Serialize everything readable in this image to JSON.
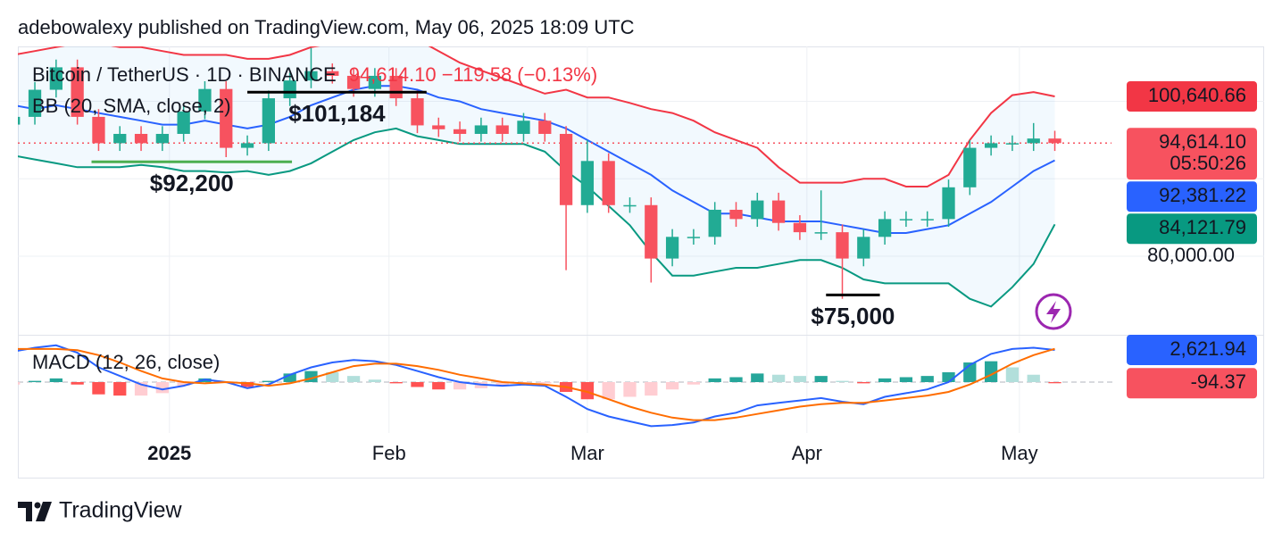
{
  "header": "adebowalexy published on TradingView.com, May 06, 2025 18:09 UTC",
  "footer": {
    "brand": "TradingView"
  },
  "chart_data": {
    "type": "candlestick",
    "symbol": "Bitcoin / TetherUS · 1D · BINANCE",
    "last_quote": "94,614.10 −119.58 (−0.13%)",
    "x": [
      0,
      3,
      6,
      9,
      12,
      15,
      18,
      21,
      24,
      27,
      30,
      33,
      36,
      39,
      42,
      45,
      48,
      51,
      54,
      57,
      60,
      63,
      66,
      69,
      72,
      75,
      78,
      81,
      84,
      87,
      90,
      93,
      96,
      99,
      102,
      105,
      108,
      111,
      114,
      117,
      120,
      123,
      126,
      129,
      132,
      135,
      138,
      141,
      144,
      147
    ],
    "xlim": [
      0.6,
      155
    ],
    "xticks": [
      {
        "value": 22,
        "label": "2025"
      },
      {
        "value": 53,
        "label": "Feb"
      },
      {
        "value": 81,
        "label": "Mar"
      },
      {
        "value": 112,
        "label": "Apr"
      },
      {
        "value": 142,
        "label": "May"
      }
    ],
    "ylim": [
      69853,
      107098
    ],
    "yticks": [
      {
        "value": 80000,
        "label": "80,000.00"
      }
    ],
    "ygrid": [
      80000,
      90000,
      100000
    ],
    "up_color": "#22ab94",
    "down_color": "#f7525f",
    "open": [
      97000,
      98000,
      101500,
      104400,
      98000,
      94600,
      95800,
      94600,
      95800,
      98700,
      101600,
      94000,
      94600,
      100400,
      102700,
      103900,
      103300,
      101600,
      103300,
      100400,
      96900,
      96400,
      95800,
      96900,
      95800,
      97500,
      95800,
      86600,
      92300,
      86600,
      86600,
      79700,
      82500,
      82500,
      86000,
      84800,
      87200,
      84300,
      83100,
      83100,
      79700,
      82500,
      84800,
      84800,
      84800,
      88900,
      94000,
      94600,
      94600,
      95200
    ],
    "high": [
      99000,
      102500,
      105400,
      105400,
      99000,
      96800,
      96800,
      96800,
      99700,
      102600,
      102600,
      95600,
      101400,
      103700,
      106900,
      104900,
      104300,
      104300,
      104300,
      101400,
      97900,
      97400,
      97900,
      97900,
      98500,
      98500,
      96800,
      95000,
      93300,
      87600,
      87600,
      83500,
      83500,
      87000,
      87000,
      88200,
      88200,
      85300,
      88500,
      84100,
      83500,
      85800,
      85800,
      85800,
      89900,
      95000,
      95600,
      95600,
      97200,
      96200
    ],
    "low": [
      96000,
      97000,
      100500,
      97000,
      93600,
      93600,
      93600,
      93600,
      94800,
      97700,
      92800,
      93000,
      93600,
      99400,
      101700,
      102300,
      100600,
      100600,
      99400,
      95900,
      95400,
      94800,
      94800,
      94800,
      94800,
      94800,
      78200,
      85600,
      85600,
      85600,
      76600,
      78700,
      81500,
      81500,
      83800,
      83800,
      83300,
      82100,
      82100,
      74500,
      78700,
      81500,
      83800,
      83800,
      83800,
      87900,
      93000,
      93600,
      93600,
      93600
    ],
    "close": [
      98000,
      101500,
      104400,
      98000,
      94600,
      95800,
      94600,
      95800,
      98700,
      101600,
      94000,
      94600,
      100400,
      102700,
      103900,
      103300,
      101600,
      103300,
      100400,
      96900,
      96400,
      95800,
      96900,
      95800,
      97500,
      95800,
      86600,
      92300,
      86600,
      86600,
      79700,
      82500,
      82500,
      86000,
      84800,
      87200,
      84300,
      83100,
      83100,
      79700,
      82500,
      84800,
      84800,
      84800,
      88900,
      94000,
      94600,
      94600,
      95200,
      94614.1
    ],
    "last_price": {
      "value": 94614.1,
      "label": "94,614.10",
      "countdown": "05:50:26",
      "color": "#f7525f"
    },
    "bollinger": {
      "name": "BB (20, SMA, close, 2)",
      "fill": "#2196f3",
      "upper": {
        "color": "#f23645",
        "last_label": "100,640.66",
        "values": [
          106000,
          106500,
          107000,
          107500,
          107500,
          107000,
          107000,
          106500,
          106000,
          106000,
          106000,
          105500,
          105500,
          106000,
          107000,
          107500,
          107500,
          108000,
          108000,
          108000,
          106500,
          105000,
          104000,
          103000,
          102000,
          101000,
          101500,
          100500,
          100500,
          99800,
          99000,
          98500,
          97500,
          96000,
          95000,
          94000,
          91500,
          89500,
          89500,
          89500,
          90000,
          90000,
          89000,
          89000,
          90500,
          95000,
          98500,
          100800,
          101200,
          100640.66
        ]
      },
      "middle": {
        "color": "#2962ff",
        "last_label": "92,381.22",
        "values": [
          99500,
          99000,
          99500,
          99000,
          98500,
          98000,
          97500,
          97000,
          97000,
          97500,
          97000,
          96500,
          97000,
          98000,
          99500,
          100500,
          101500,
          102000,
          102000,
          101500,
          100500,
          100000,
          99000,
          98500,
          98000,
          97500,
          96500,
          95000,
          93500,
          92000,
          90500,
          88500,
          87000,
          85500,
          85500,
          85000,
          84500,
          84500,
          84500,
          84000,
          83500,
          83000,
          83000,
          83500,
          84000,
          85500,
          87000,
          89000,
          91000,
          92381.22
        ]
      },
      "lower": {
        "color": "#089981",
        "last_label": "84,121.79",
        "values": [
          93000,
          92500,
          92000,
          91500,
          91500,
          91500,
          91800,
          91500,
          91000,
          91000,
          90800,
          91000,
          90500,
          91000,
          92000,
          93500,
          95000,
          96000,
          96500,
          95500,
          95000,
          94500,
          94500,
          94500,
          94500,
          93500,
          91000,
          89000,
          86500,
          84000,
          80500,
          77500,
          77500,
          78000,
          78500,
          78500,
          79000,
          79500,
          79500,
          78500,
          77000,
          76500,
          76500,
          76500,
          76500,
          74500,
          73500,
          76000,
          79000,
          84121.79
        ]
      }
    },
    "macd": {
      "name": "MACD (12, 26, close)",
      "ylim": [
        -4150,
        3858
      ],
      "baseline": 0,
      "line": {
        "color": "#2962ff",
        "last_label": "2,621.94",
        "values": [
          2500,
          2800,
          3000,
          2400,
          1200,
          500,
          -200,
          -600,
          -300,
          200,
          0,
          -500,
          -200,
          600,
          1200,
          1600,
          1800,
          1700,
          1400,
          900,
          400,
          0,
          -200,
          -300,
          -200,
          -300,
          -1200,
          -2200,
          -2800,
          -3200,
          -3600,
          -3500,
          -3300,
          -2800,
          -2500,
          -1900,
          -1700,
          -1500,
          -1300,
          -1600,
          -1800,
          -1200,
          -900,
          -600,
          0,
          1400,
          2300,
          2700,
          2800,
          2621.94
        ]
      },
      "signal": {
        "color": "#ff6d00",
        "values": [
          2700,
          2700,
          2700,
          2600,
          2200,
          1600,
          900,
          300,
          0,
          -100,
          0,
          -100,
          -300,
          -100,
          300,
          800,
          1300,
          1500,
          1500,
          1300,
          1000,
          600,
          300,
          0,
          -100,
          -200,
          -400,
          -800,
          -1400,
          -2000,
          -2500,
          -2900,
          -3100,
          -3100,
          -2900,
          -2600,
          -2300,
          -2000,
          -1800,
          -1700,
          -1700,
          -1500,
          -1300,
          -1100,
          -800,
          -200,
          600,
          1500,
          2200,
          2716.31
        ]
      },
      "histogram": {
        "last_label": "-94.37",
        "colors": [
          "#26a69a",
          "#b2dfdb",
          "#ffcdd2",
          "#ff5252"
        ],
        "values": [
          -200,
          100,
          300,
          -200,
          -1000,
          -1100,
          -1100,
          -900,
          -300,
          300,
          0,
          -400,
          100,
          700,
          900,
          800,
          500,
          200,
          -100,
          -400,
          -600,
          -600,
          -500,
          -300,
          -100,
          -100,
          -800,
          -1400,
          -1400,
          -1200,
          -1100,
          -600,
          -200,
          300,
          400,
          700,
          600,
          500,
          500,
          100,
          -100,
          300,
          400,
          500,
          800,
          1600,
          1700,
          1200,
          600,
          -94.37
        ]
      }
    },
    "annotations": [
      {
        "text": "$92,200",
        "value": 92200,
        "from": 11,
        "to": 39.3,
        "color": "#4caf50"
      },
      {
        "text": "$101,184",
        "value": 101184,
        "from": 33,
        "to": 58.3,
        "color": "#000000"
      },
      {
        "text": "$75,000",
        "value": 75000,
        "from": 114.7,
        "to": 122.3,
        "color": "#000000"
      }
    ]
  }
}
